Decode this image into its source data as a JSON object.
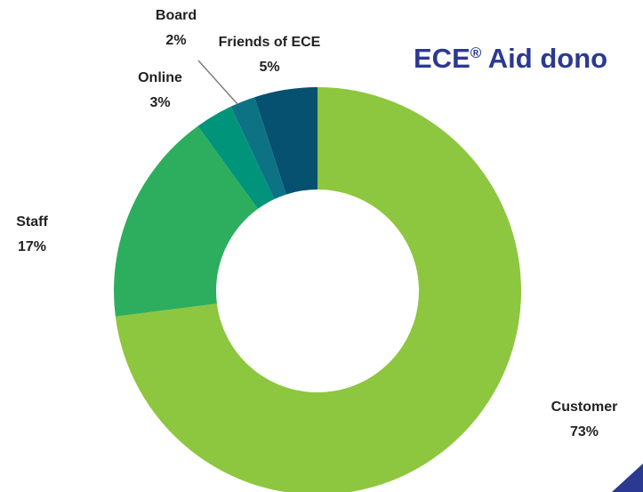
{
  "chart_data": {
    "type": "pie",
    "variant": "donut",
    "title_main": "ECE",
    "title_mark": "®",
    "title_rest": " Aid dono",
    "slices": [
      {
        "label": "Customer",
        "value": 73,
        "display": "73%",
        "color": "#8DC63F"
      },
      {
        "label": "Staff",
        "value": 17,
        "display": "17%",
        "color": "#2DAE5E"
      },
      {
        "label": "Online",
        "value": 3,
        "display": "3%",
        "color": "#00957A"
      },
      {
        "label": "Board",
        "value": 2,
        "display": "2%",
        "color": "#0E7285"
      },
      {
        "label": "Friends of ECE",
        "value": 5,
        "display": "5%",
        "color": "#05516F"
      }
    ],
    "legend": "none"
  },
  "colors": {
    "title": "#2B3990",
    "corner_accent": "#2B3990",
    "label_text": "#222222",
    "leader_line": "#7F7F7F"
  }
}
